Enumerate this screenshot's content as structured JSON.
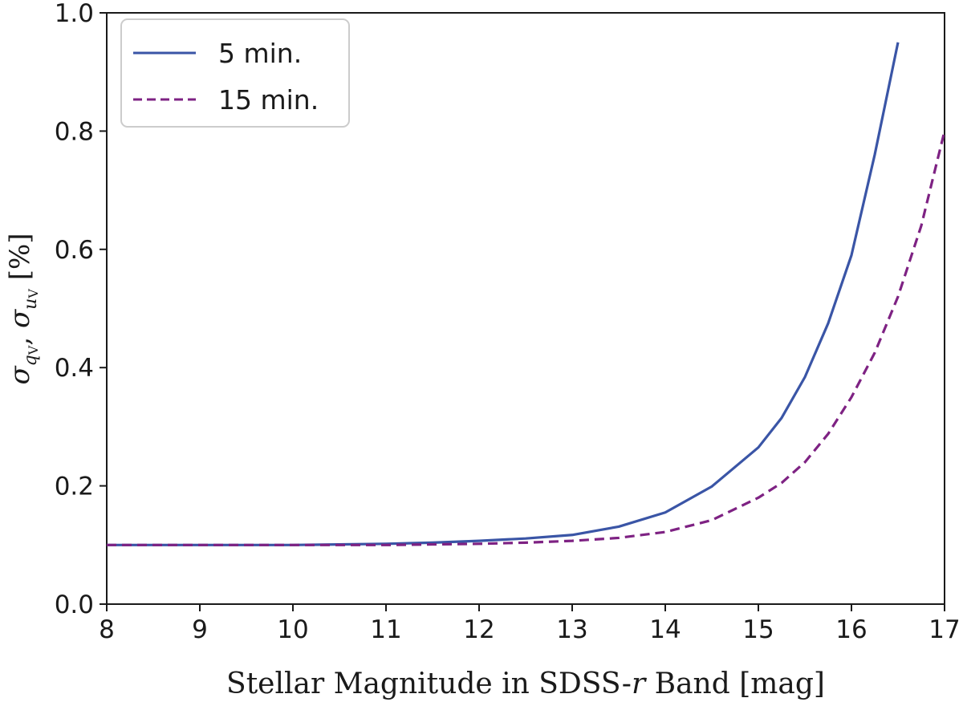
{
  "chart_data": {
    "type": "line",
    "title": "",
    "xlabel_prefix": "Stellar Magnitude in SDSS-",
    "xlabel_var": "r",
    "xlabel_suffix": " Band [mag]",
    "ylabel": {
      "sigma": "σ",
      "sub1_var": "q",
      "sub1_idx": "V",
      "sep": ",  ",
      "sub2_var": "u",
      "sub2_idx": "V",
      "unit": "  [%]"
    },
    "xlim": [
      8,
      17
    ],
    "ylim": [
      0.0,
      1.0
    ],
    "xticks": [
      8,
      9,
      10,
      11,
      12,
      13,
      14,
      15,
      16,
      17
    ],
    "xtick_labels": [
      "8",
      "9",
      "10",
      "11",
      "12",
      "13",
      "14",
      "15",
      "16",
      "17"
    ],
    "yticks": [
      0.0,
      0.2,
      0.4,
      0.6,
      0.8,
      1.0
    ],
    "ytick_labels": [
      "0.0",
      "0.2",
      "0.4",
      "0.6",
      "0.8",
      "1.0"
    ],
    "grid": false,
    "legend_position": "top-left",
    "x": [
      8,
      9,
      10,
      11,
      11.5,
      12,
      12.5,
      13,
      13.5,
      14,
      14.5,
      15,
      15.25,
      15.5,
      15.75,
      16,
      16.25,
      16.5,
      16.75,
      17
    ],
    "series": [
      {
        "name": "5 min.",
        "color": "#3a55a6",
        "style": "solid",
        "values": [
          0.1,
          0.1,
          0.1,
          0.102,
          0.104,
          0.107,
          0.111,
          0.117,
          0.131,
          0.155,
          0.199,
          0.265,
          0.315,
          0.384,
          0.475,
          0.59,
          0.76,
          0.95,
          null,
          null
        ]
      },
      {
        "name": "15 min.",
        "color": "#7e2283",
        "style": "dashed",
        "values": [
          0.1,
          0.1,
          0.1,
          0.1,
          0.101,
          0.102,
          0.104,
          0.107,
          0.112,
          0.122,
          0.142,
          0.18,
          0.205,
          0.24,
          0.288,
          0.35,
          0.425,
          0.52,
          0.64,
          0.8
        ]
      }
    ]
  }
}
